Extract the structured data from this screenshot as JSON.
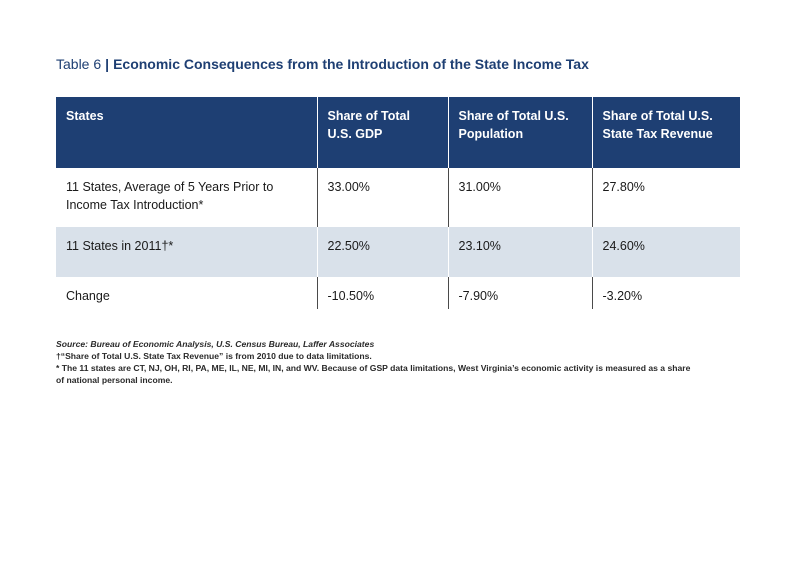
{
  "table": {
    "number": "Table 6",
    "separator": "|",
    "title": "Economic Consequences from the Introduction of the State Income Tax",
    "headers": [
      [
        "States"
      ],
      [
        "Share of Total",
        "U.S. GDP"
      ],
      [
        "Share of Total U.S.",
        "Population"
      ],
      [
        "Share of Total U.S.",
        "State Tax Revenue"
      ]
    ],
    "rows": [
      {
        "label_lines": [
          "11 States, Average of 5 Years Prior to",
          "Income Tax Introduction*"
        ],
        "gdp": "33.00%",
        "population": "31.00%",
        "tax_revenue": "27.80%"
      },
      {
        "label_lines": [
          "11 States in 2011†*"
        ],
        "gdp": "22.50%",
        "population": "23.10%",
        "tax_revenue": "24.60%"
      },
      {
        "label_lines": [
          "Change"
        ],
        "gdp": "-10.50%",
        "population": "-7.90%",
        "tax_revenue": "-3.20%"
      }
    ]
  },
  "notes": {
    "source": "Source: Bureau of Economic Analysis, U.S. Census Bureau, Laffer Associates",
    "dagger": "†“Share of Total U.S. State Tax Revenue” is from 2010 due to data limitations.",
    "asterisk_line1": "* The 11 states are CT, NJ, OH, RI, PA, ME, IL, NE, MI, IN, and WV. Because of GSP data limitations, West Virginia’s economic activity is measured as a share",
    "asterisk_line2": "of national personal income."
  },
  "colors": {
    "header_bg": "#1e3f73",
    "title_text": "#1e3f73",
    "band_row_bg": "#d9e1ea"
  }
}
